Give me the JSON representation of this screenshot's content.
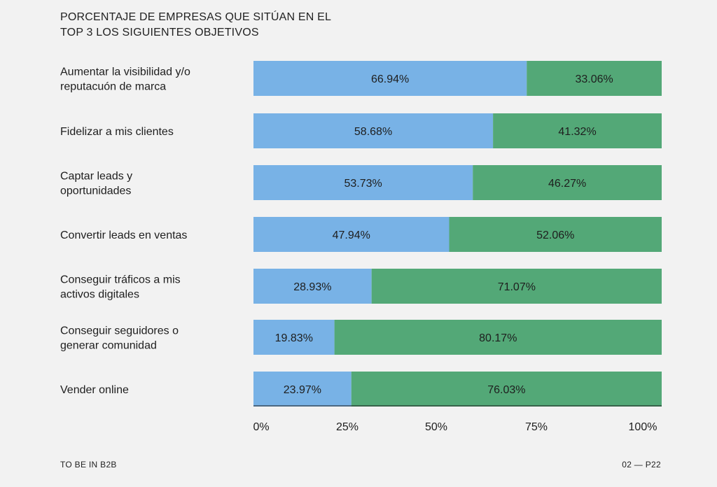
{
  "chart_data": {
    "type": "bar",
    "orientation": "horizontal",
    "stacked": true,
    "title": [
      "PORCENTAJE DE EMPRESAS QUE SITÚAN EN EL",
      "TOP 3 LOS SIGUIENTES OBJETIVOS"
    ],
    "categories": [
      [
        "Aumentar la visibilidad y/o",
        "reputacuón de marca"
      ],
      [
        "Fidelizar a mis clientes"
      ],
      [
        "Captar leads y",
        "oportunidades"
      ],
      [
        "Convertir leads en ventas"
      ],
      [
        "Conseguir tráficos a mis",
        "activos digitales"
      ],
      [
        "Conseguir seguidores o",
        "generar comunidad"
      ],
      [
        "Vender online"
      ]
    ],
    "series": [
      {
        "name": "top3",
        "color": "#78b2e6",
        "values": [
          66.94,
          58.68,
          53.73,
          47.94,
          28.93,
          19.83,
          23.97
        ],
        "labels": [
          "66.94%",
          "58.68%",
          "53.73%",
          "47.94%",
          "28.93%",
          "19.83%",
          "23.97%"
        ]
      },
      {
        "name": "rest",
        "color": "#53a877",
        "values": [
          33.06,
          41.32,
          46.27,
          52.06,
          71.07,
          80.17,
          76.03
        ],
        "labels": [
          "33.06%",
          "41.32%",
          "46.27%",
          "52.06%",
          "71.07%",
          "80.17%",
          "76.03%"
        ]
      }
    ],
    "xlim": [
      0,
      100
    ],
    "x_ticks": [
      "0%",
      "25%",
      "50%",
      "75%",
      "100%"
    ],
    "grid": false
  },
  "footer": {
    "left": "TO BE IN B2B",
    "right": "02 — P22"
  }
}
